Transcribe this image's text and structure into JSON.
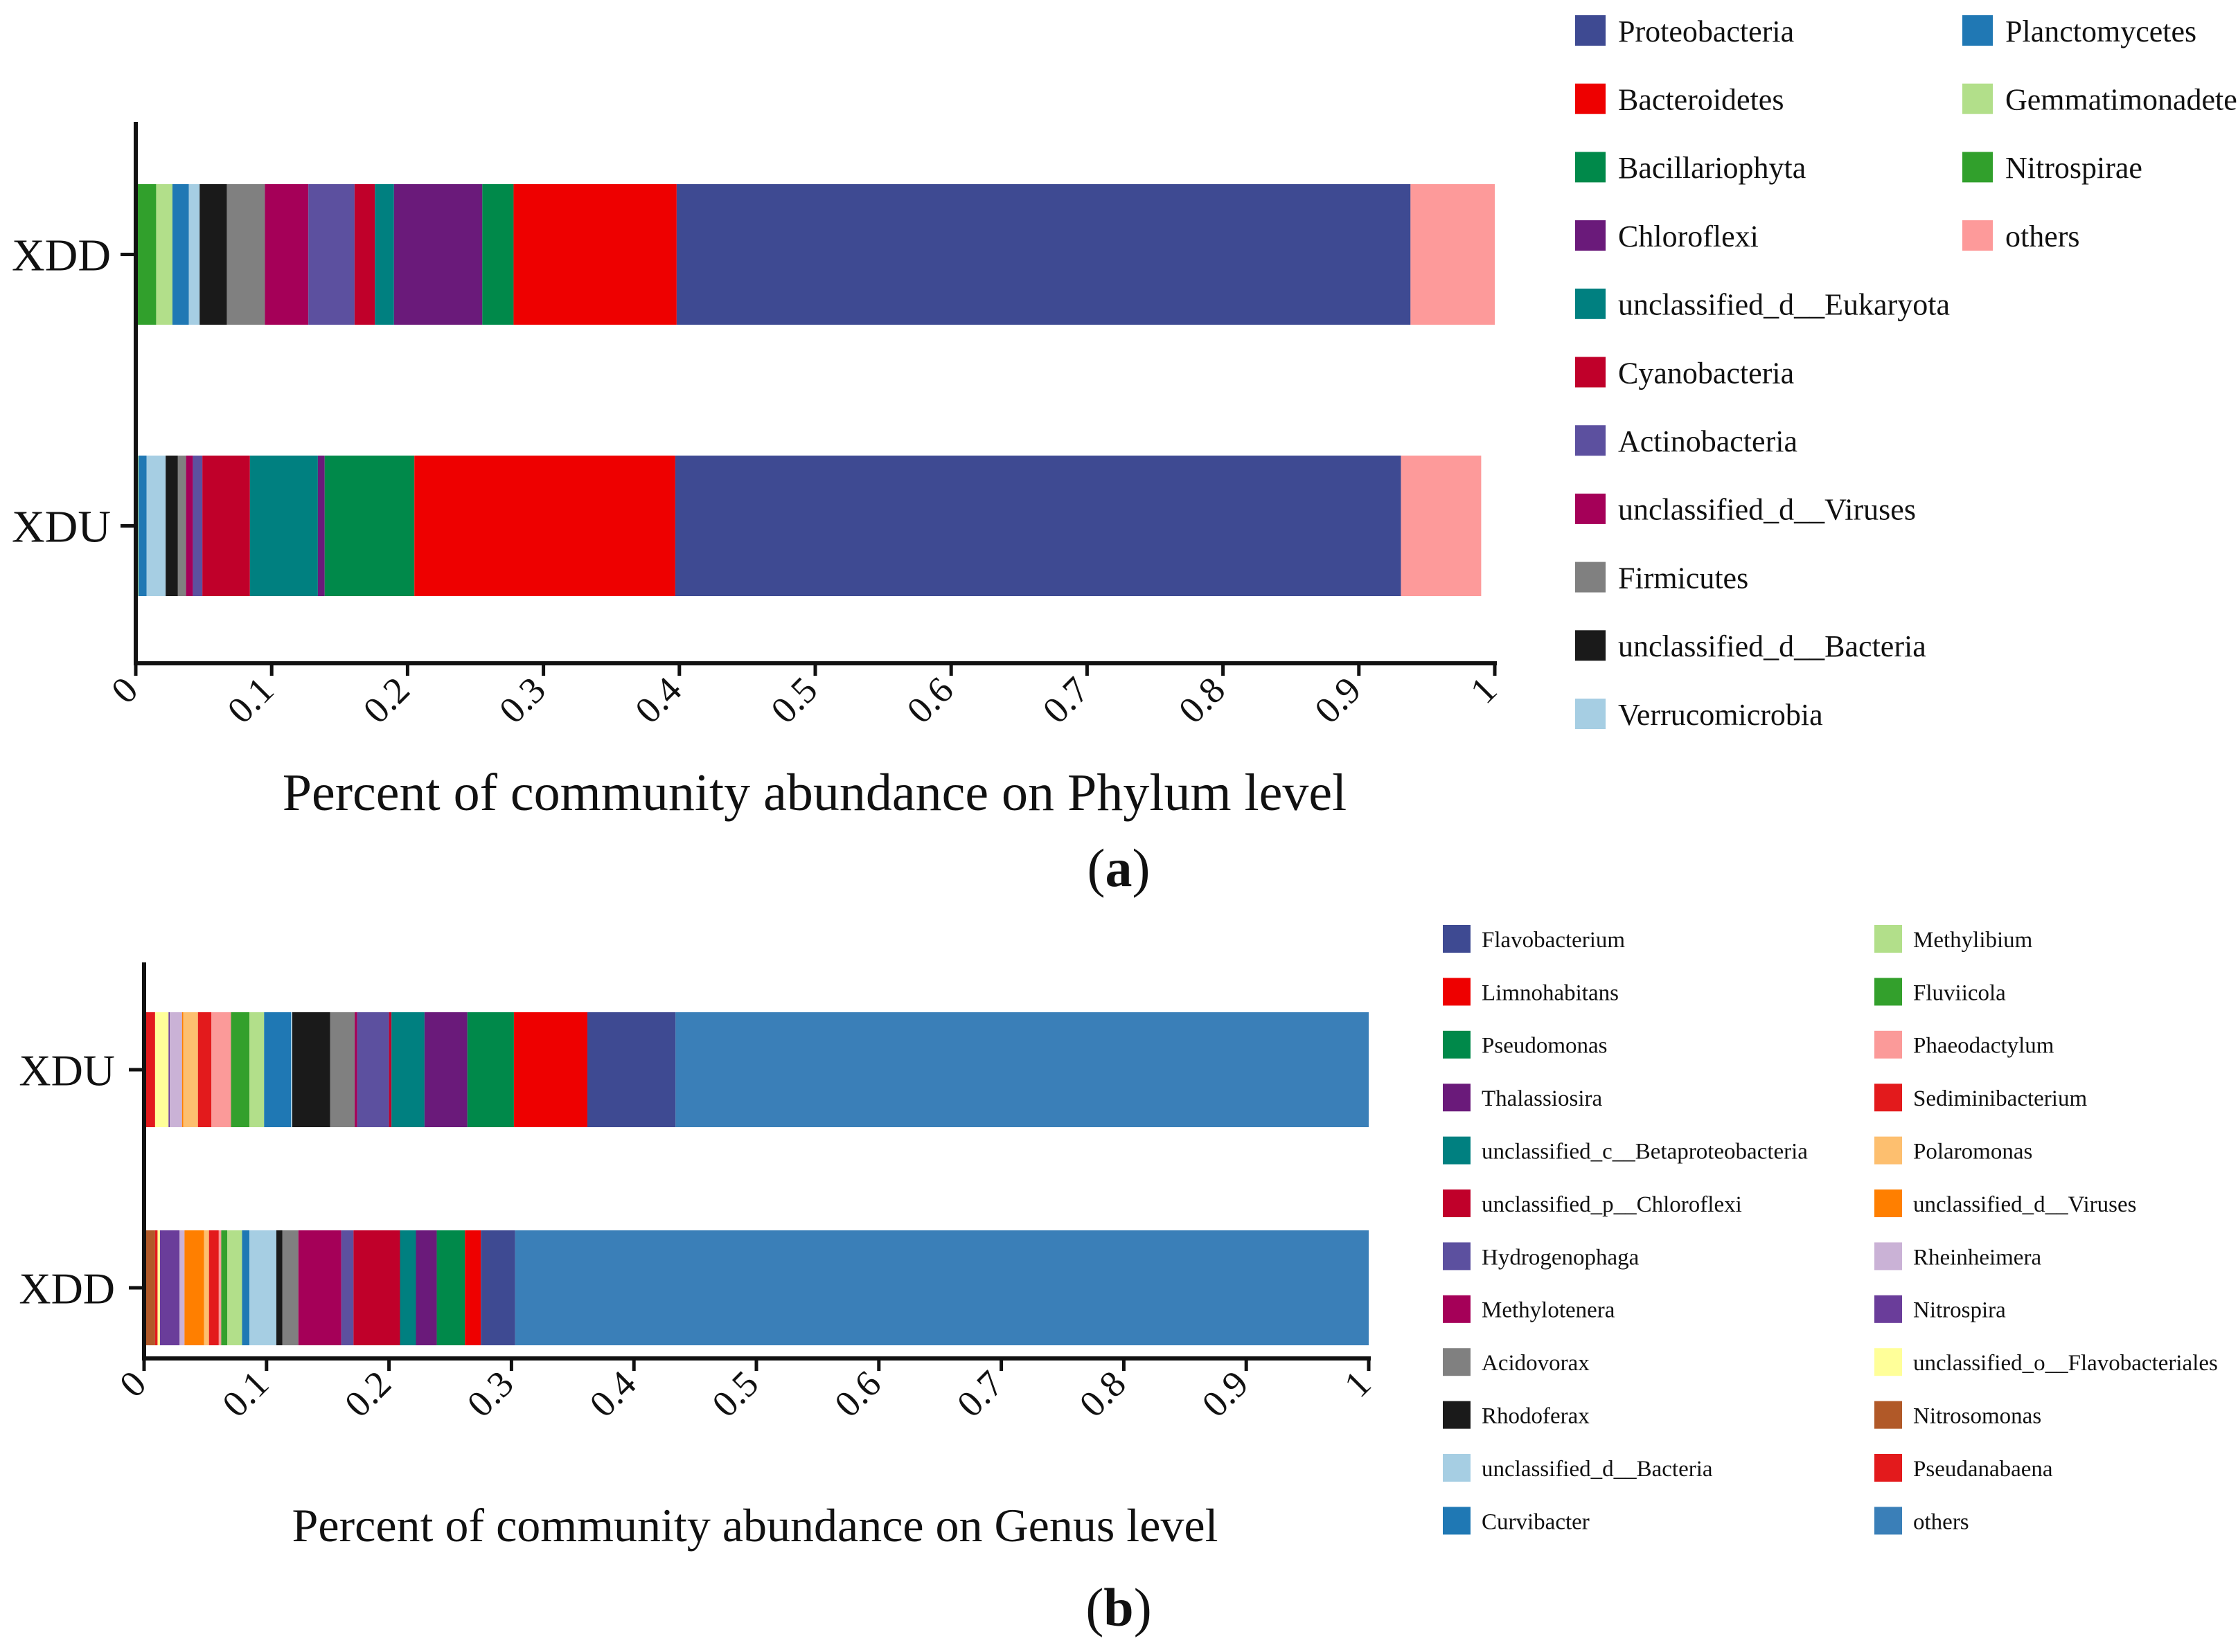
{
  "chart_data": [
    {
      "type": "bar",
      "orientation": "horizontal-stacked",
      "panel_label": "a",
      "title": "",
      "xlabel": "Percent of community abundance on Phylum level",
      "ylabel": "",
      "xlim": [
        0,
        1
      ],
      "x_ticks": [
        "0",
        "0.1",
        "0.2",
        "0.3",
        "0.4",
        "0.5",
        "0.6",
        "0.7",
        "0.8",
        "0.9",
        "1"
      ],
      "categories": [
        "XDD",
        "XDU"
      ],
      "grid": false,
      "legend_position": "right",
      "series": [
        {
          "name": "Nitrospirae",
          "color": "#31a02c",
          "values": [
            0.015,
            0.001
          ]
        },
        {
          "name": "Gemmatimonadetes",
          "color": "#b2df8a",
          "values": [
            0.012,
            0.001
          ]
        },
        {
          "name": "Planctomycetes",
          "color": "#2078b4",
          "values": [
            0.012,
            0.006
          ]
        },
        {
          "name": "Verrucomicrobia",
          "color": "#a6cee3",
          "values": [
            0.008,
            0.014
          ]
        },
        {
          "name": "unclassified_d__Bacteria",
          "color": "#1a1a1a",
          "values": [
            0.02,
            0.009
          ]
        },
        {
          "name": "Firmicutes",
          "color": "#808080",
          "values": [
            0.028,
            0.006
          ]
        },
        {
          "name": "unclassified_d__Viruses",
          "color": "#a50058",
          "values": [
            0.032,
            0.005
          ]
        },
        {
          "name": "Actinobacteria",
          "color": "#5c509f",
          "values": [
            0.034,
            0.007
          ]
        },
        {
          "name": "Cyanobacteria",
          "color": "#c0002a",
          "values": [
            0.015,
            0.035
          ]
        },
        {
          "name": "unclassified_d__Eukaryota",
          "color": "#008080",
          "values": [
            0.014,
            0.05
          ]
        },
        {
          "name": "Chloroflexi",
          "color": "#6a1a7a",
          "values": [
            0.065,
            0.005
          ]
        },
        {
          "name": "Bacillariophyta",
          "color": "#00894a",
          "values": [
            0.023,
            0.066
          ]
        },
        {
          "name": "Bacteroidetes",
          "color": "#ee0000",
          "values": [
            0.12,
            0.192
          ]
        },
        {
          "name": "Proteobacteria",
          "color": "#3e4a92",
          "values": [
            0.54,
            0.534
          ]
        },
        {
          "name": "others",
          "color": "#fd9a9a",
          "values": [
            0.062,
            0.059
          ]
        }
      ],
      "legend": [
        "Proteobacteria",
        "Bacteroidetes",
        "Bacillariophyta",
        "Chloroflexi",
        "unclassified_d__Eukaryota",
        "Cyanobacteria",
        "Actinobacteria",
        "unclassified_d__Viruses",
        "Firmicutes",
        "unclassified_d__Bacteria",
        "Verrucomicrobia",
        "Planctomycetes",
        "Gemmatimonadetes",
        "Nitrospirae",
        "others"
      ]
    },
    {
      "type": "bar",
      "orientation": "horizontal-stacked",
      "panel_label": "b",
      "title": "",
      "xlabel": "Percent of community abundance on Genus level",
      "ylabel": "",
      "xlim": [
        0,
        1
      ],
      "x_ticks": [
        "0",
        "0.1",
        "0.2",
        "0.3",
        "0.4",
        "0.5",
        "0.6",
        "0.7",
        "0.8",
        "0.9",
        "1"
      ],
      "categories": [
        "XDU",
        "XDD"
      ],
      "grid": false,
      "legend_position": "right",
      "series": [
        {
          "name": "Nitrosomonas",
          "color": "#b15928",
          "values": [
            0.001,
            0.009
          ]
        },
        {
          "name": "Pseudanabaena",
          "color": "#e31a1c",
          "values": [
            0.008,
            0.002
          ]
        },
        {
          "name": "unclassified_o__Flavobacteriales",
          "color": "#ffff99",
          "values": [
            0.011,
            0.002
          ]
        },
        {
          "name": "Nitrospira",
          "color": "#6a3d9a",
          "values": [
            0.001,
            0.016
          ]
        },
        {
          "name": "Rheinheimera",
          "color": "#cab2d6",
          "values": [
            0.01,
            0.004
          ]
        },
        {
          "name": "unclassified_d__Viruses",
          "color": "#ff7f00",
          "values": [
            0.001,
            0.016
          ]
        },
        {
          "name": "Polaromonas",
          "color": "#fdbf6f",
          "values": [
            0.012,
            0.004
          ]
        },
        {
          "name": "Sediminibacterium",
          "color": "#e31a1c",
          "values": [
            0.011,
            0.008
          ]
        },
        {
          "name": "Phaeodactylum",
          "color": "#fb9a99",
          "values": [
            0.016,
            0.002
          ]
        },
        {
          "name": "Fluviicola",
          "color": "#33a02c",
          "values": [
            0.015,
            0.005
          ]
        },
        {
          "name": "Methylibium",
          "color": "#b2df8a",
          "values": [
            0.012,
            0.012
          ]
        },
        {
          "name": "Curvibacter",
          "color": "#1f78b4",
          "values": [
            0.022,
            0.006
          ]
        },
        {
          "name": "unclassified_d__Bacteria",
          "color": "#a6cee3",
          "values": [
            0.001,
            0.022
          ]
        },
        {
          "name": "Rhodoferax",
          "color": "#1a1a1a",
          "values": [
            0.031,
            0.005
          ]
        },
        {
          "name": "Acidovorax",
          "color": "#808080",
          "values": [
            0.02,
            0.013
          ]
        },
        {
          "name": "Methylotenera",
          "color": "#a50058",
          "values": [
            0.002,
            0.035
          ]
        },
        {
          "name": "Hydrogenophaga",
          "color": "#5c509f",
          "values": [
            0.026,
            0.01
          ]
        },
        {
          "name": "unclassified_p__Chloroflexi",
          "color": "#c0002a",
          "values": [
            0.002,
            0.038
          ]
        },
        {
          "name": "unclassified_c__Betaproteobacteria",
          "color": "#008080",
          "values": [
            0.027,
            0.013
          ]
        },
        {
          "name": "Thalassiosira",
          "color": "#6a1a7a",
          "values": [
            0.035,
            0.017
          ]
        },
        {
          "name": "Pseudomonas",
          "color": "#00894a",
          "values": [
            0.038,
            0.023
          ]
        },
        {
          "name": "Limnohabitans",
          "color": "#ee0000",
          "values": [
            0.06,
            0.013
          ]
        },
        {
          "name": "Flavobacterium",
          "color": "#3e4a92",
          "values": [
            0.072,
            0.028
          ]
        },
        {
          "name": "others",
          "color": "#3a7fb8",
          "values": [
            0.566,
            0.697
          ]
        }
      ],
      "legend": [
        "Flavobacterium",
        "Limnohabitans",
        "Pseudomonas",
        "Thalassiosira",
        "unclassified_c__Betaproteobacteria",
        "unclassified_p__Chloroflexi",
        "Hydrogenophaga",
        "Methylotenera",
        "Acidovorax",
        "Rhodoferax",
        "unclassified_d__Bacteria",
        "Curvibacter",
        "Methylibium",
        "Fluviicola",
        "Phaeodactylum",
        "Sediminibacterium",
        "Polaromonas",
        "unclassified_d__Viruses",
        "Rheinheimera",
        "Nitrospira",
        "unclassified_o__Flavobacteriales",
        "Nitrosomonas",
        "Pseudanabaena",
        "others"
      ]
    }
  ]
}
